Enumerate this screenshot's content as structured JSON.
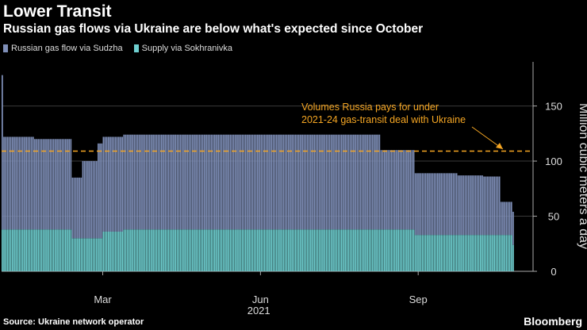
{
  "header": {
    "title": "Lower Transit",
    "subtitle": "Russian gas flows via Ukraine are below what's expected since October"
  },
  "legend": [
    {
      "label": "Russian gas flow via Sudzha",
      "color": "#7f8fb8"
    },
    {
      "label": "Supply via Sokhranivka",
      "color": "#6fcfd0"
    }
  ],
  "footer": {
    "source": "Source: Ukraine network operator",
    "brand": "Bloomberg"
  },
  "chart_data": {
    "type": "bar",
    "stacked": true,
    "title": "Lower Transit",
    "subtitle": "Russian gas flows via Ukraine are below what's expected since October",
    "xlabel": "2021",
    "ylabel": "Million cubic meters a day",
    "ylim": [
      0,
      190
    ],
    "yticks": [
      0,
      50,
      100,
      150
    ],
    "xticks": [
      {
        "label": "Mar",
        "day": 59
      },
      {
        "label": "Jun",
        "day": 151
      },
      {
        "label": "Sep",
        "day": 243
      }
    ],
    "x_range_days": [
      0,
      310
    ],
    "year_label": "2021",
    "reference_line": {
      "value": 109,
      "label_lines": [
        "Volumes Russia pays for under",
        "2021-24 gas-transit deal with Ukraine"
      ],
      "color": "#f5a623"
    },
    "series": [
      {
        "name": "Russian gas flow via Sudzha",
        "color": "#7f8fb8",
        "segments": [
          {
            "from": 0,
            "to": 0,
            "value": 140
          },
          {
            "from": 1,
            "to": 18,
            "value": 84
          },
          {
            "from": 19,
            "to": 40,
            "value": 82
          },
          {
            "from": 41,
            "to": 46,
            "value": 55
          },
          {
            "from": 47,
            "to": 55,
            "value": 70
          },
          {
            "from": 56,
            "to": 70,
            "value": 86
          },
          {
            "from": 71,
            "to": 220,
            "value": 86
          },
          {
            "from": 221,
            "to": 240,
            "value": 72
          },
          {
            "from": 241,
            "to": 265,
            "value": 56
          },
          {
            "from": 266,
            "to": 280,
            "value": 54
          },
          {
            "from": 281,
            "to": 290,
            "value": 53
          },
          {
            "from": 291,
            "to": 298,
            "value": 30
          }
        ]
      },
      {
        "name": "Supply via Sokhranivka",
        "color": "#6fcfd0",
        "segments": [
          {
            "from": 0,
            "to": 0,
            "value": 38
          },
          {
            "from": 1,
            "to": 40,
            "value": 38
          },
          {
            "from": 41,
            "to": 58,
            "value": 30
          },
          {
            "from": 59,
            "to": 70,
            "value": 36
          },
          {
            "from": 71,
            "to": 240,
            "value": 38
          },
          {
            "from": 241,
            "to": 297,
            "value": 33
          },
          {
            "from": 298,
            "to": 298,
            "value": 24
          }
        ]
      }
    ]
  }
}
